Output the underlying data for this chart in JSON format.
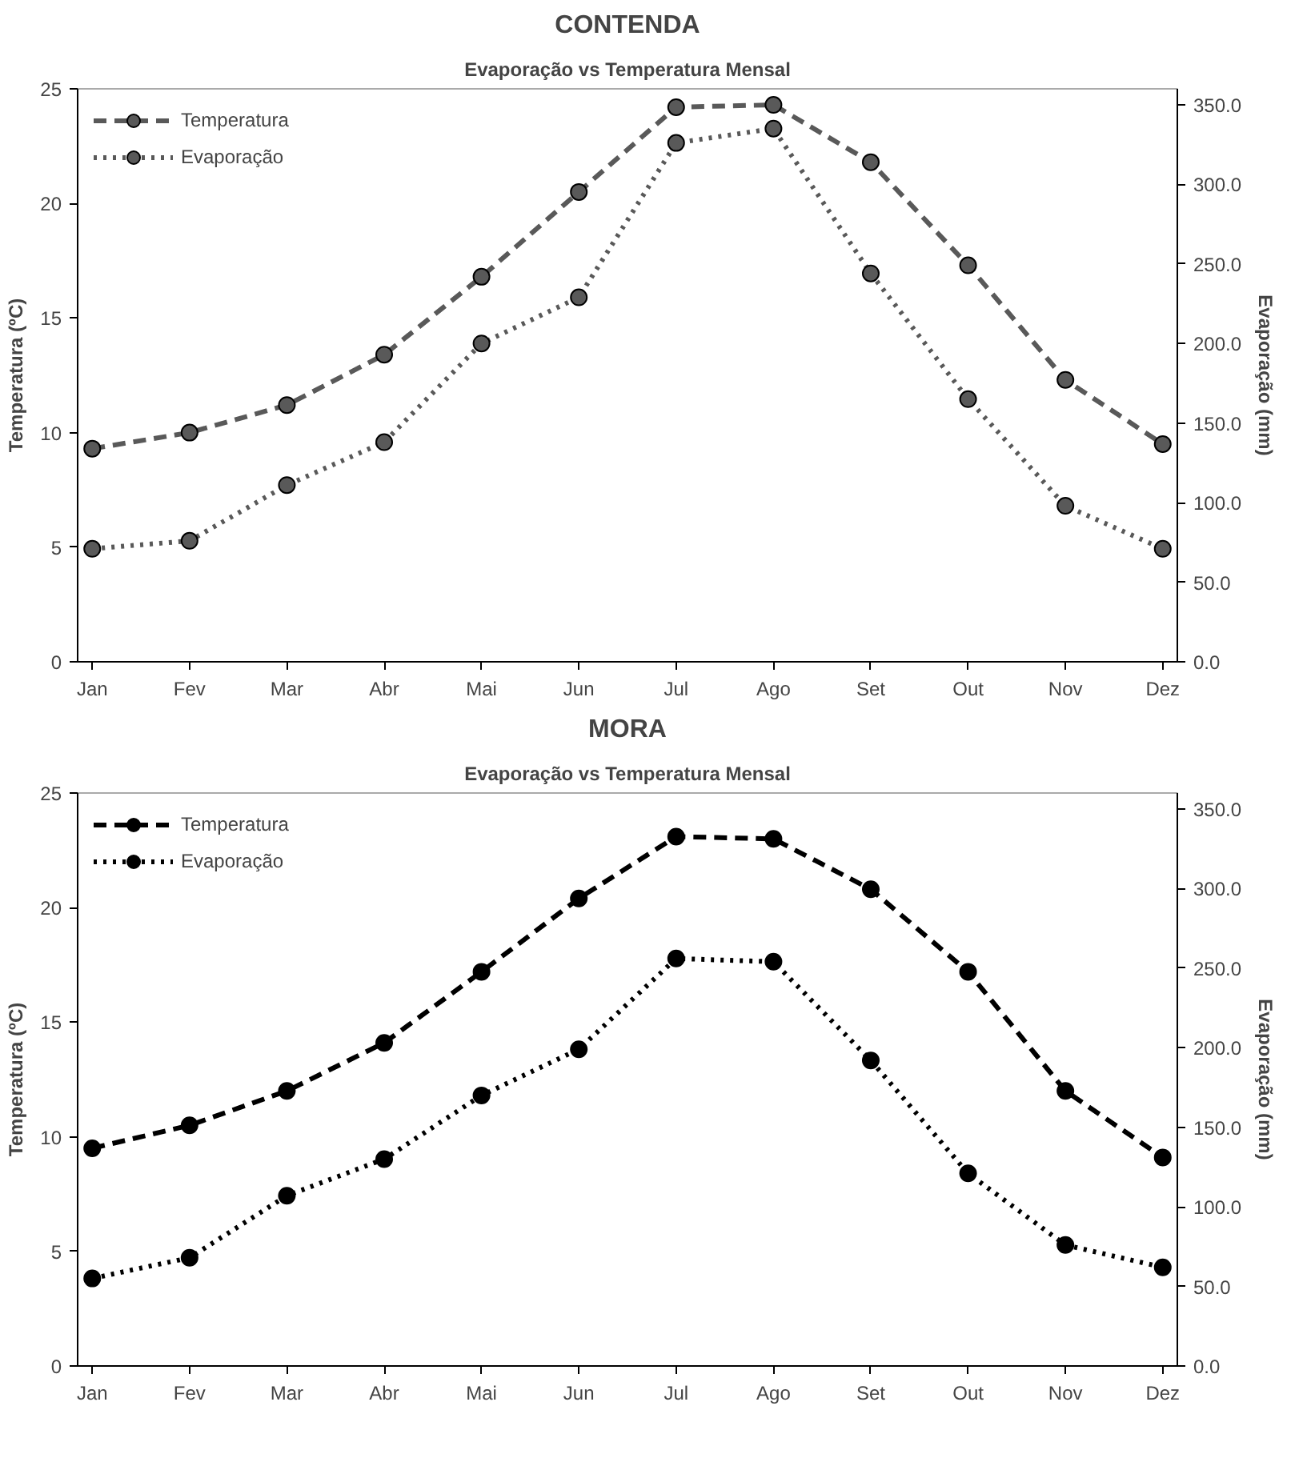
{
  "chart_data": [
    {
      "type": "line",
      "title": "CONTENDA",
      "subtitle": "Evaporação vs Temperatura Mensal",
      "ylabel": "Temperatura (ºC)",
      "y2label": "Evaporação (mm)",
      "categories": [
        "Jan",
        "Fev",
        "Mar",
        "Abr",
        "Mai",
        "Jun",
        "Jul",
        "Ago",
        "Set",
        "Out",
        "Nov",
        "Dez"
      ],
      "series": [
        {
          "name": "Temperatura",
          "color": "#595959",
          "line_style": "dashed",
          "values": [
            9.3,
            10.0,
            11.2,
            13.4,
            16.8,
            20.5,
            24.2,
            24.3,
            21.8,
            17.3,
            12.3,
            9.5
          ]
        },
        {
          "name": "Evaporação",
          "color": "#595959",
          "line_style": "dotted",
          "axis": "y2",
          "values": [
            71,
            76,
            111,
            138,
            200,
            229,
            326,
            335,
            244,
            165,
            98,
            71
          ]
        }
      ],
      "ylim": [
        0,
        25
      ],
      "yticks": [
        0,
        5,
        10,
        15,
        20,
        25
      ],
      "y2lim": [
        0,
        360
      ],
      "y2ticks": [
        {
          "value": 0,
          "label": "0.0"
        },
        {
          "value": 50,
          "label": "50.0"
        },
        {
          "value": 100,
          "label": "100.0"
        },
        {
          "value": 150,
          "label": "150.0"
        },
        {
          "value": 200,
          "label": "200.0"
        },
        {
          "value": 250,
          "label": "250.0"
        },
        {
          "value": 300,
          "label": "300.0"
        },
        {
          "value": 350,
          "label": "350.0"
        }
      ],
      "marker": "circle",
      "grid": false,
      "legend": "top left"
    },
    {
      "type": "line",
      "title": "MORA",
      "subtitle": "Evaporação vs Temperatura Mensal",
      "ylabel": "Temperatura (ºC)",
      "y2label": "Evaporação (mm)",
      "categories": [
        "Jan",
        "Fev",
        "Mar",
        "Abr",
        "Mai",
        "Jun",
        "Jul",
        "Ago",
        "Set",
        "Out",
        "Nov",
        "Dez"
      ],
      "series": [
        {
          "name": "Temperatura",
          "color": "#000000",
          "line_style": "dashed",
          "values": [
            9.5,
            10.5,
            12.0,
            14.1,
            17.2,
            20.4,
            23.1,
            23.0,
            20.8,
            17.2,
            12.0,
            9.1
          ]
        },
        {
          "name": "Evaporação",
          "color": "#000000",
          "line_style": "dotted",
          "axis": "y2",
          "values": [
            55,
            68,
            107,
            130,
            170,
            199,
            256,
            254,
            192,
            121,
            76,
            62
          ]
        }
      ],
      "ylim": [
        0,
        25
      ],
      "yticks": [
        0,
        5,
        10,
        15,
        20,
        25
      ],
      "y2lim": [
        0,
        360
      ],
      "y2ticks": [
        {
          "value": 0,
          "label": "0.0"
        },
        {
          "value": 50,
          "label": "50.0"
        },
        {
          "value": 100,
          "label": "100.0"
        },
        {
          "value": 150,
          "label": "150.0"
        },
        {
          "value": 200,
          "label": "200.0"
        },
        {
          "value": 250,
          "label": "250.0"
        },
        {
          "value": 300,
          "label": "300.0"
        },
        {
          "value": 350,
          "label": "350.0"
        }
      ],
      "marker": "circle",
      "grid": false,
      "legend": "top left"
    }
  ]
}
